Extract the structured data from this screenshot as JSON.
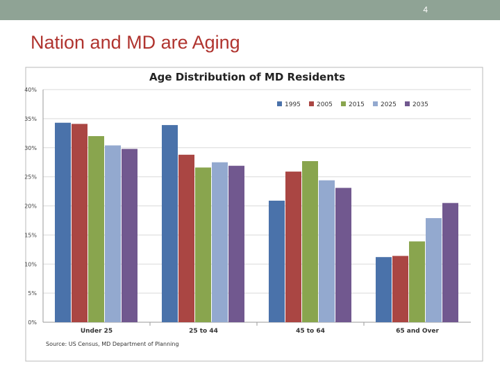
{
  "slide": {
    "number": "4",
    "title": "Nation and MD are Aging"
  },
  "colors": {
    "topbar": "#8fa395",
    "title": "#b0342f",
    "series": [
      "#4a72aa",
      "#aa4643",
      "#89a54e",
      "#93a9cf",
      "#71588f"
    ]
  },
  "chart_data": {
    "type": "bar",
    "title": "Age Distribution of MD Residents",
    "categories": [
      "Under 25",
      "25 to 44",
      "45 to 64",
      "65 and Over"
    ],
    "series": [
      {
        "name": "1995",
        "values": [
          34.3,
          33.9,
          20.9,
          11.2
        ]
      },
      {
        "name": "2005",
        "values": [
          34.1,
          28.8,
          25.9,
          11.4
        ]
      },
      {
        "name": "2015",
        "values": [
          32.0,
          26.6,
          27.7,
          13.9
        ]
      },
      {
        "name": "2025",
        "values": [
          30.4,
          27.5,
          24.4,
          17.9
        ]
      },
      {
        "name": "2035",
        "values": [
          29.8,
          26.9,
          23.1,
          20.5
        ]
      }
    ],
    "ylim": [
      0,
      40
    ],
    "yticks": [
      "0%",
      "5%",
      "10%",
      "15%",
      "20%",
      "25%",
      "30%",
      "35%",
      "40%"
    ],
    "ytick_values": [
      0,
      5,
      10,
      15,
      20,
      25,
      30,
      35,
      40
    ],
    "legend_position": "top-right",
    "grid": true,
    "source": "Source: US Census, MD Department of Planning"
  }
}
